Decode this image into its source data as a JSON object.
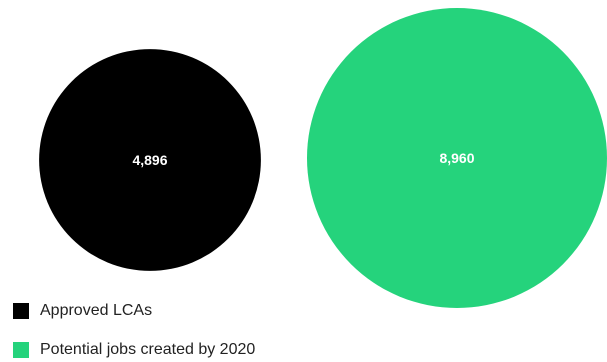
{
  "chart_data": {
    "type": "bubble",
    "title": "",
    "series": [
      {
        "name": "Approved LCAs",
        "value": 4896,
        "label": "4,896",
        "color": "#000000"
      },
      {
        "name": "Potential jobs created by 2020",
        "value": 8960,
        "label": "8,960",
        "color": "#25d37c"
      }
    ],
    "legend": {
      "placement": "bottom-left"
    }
  }
}
